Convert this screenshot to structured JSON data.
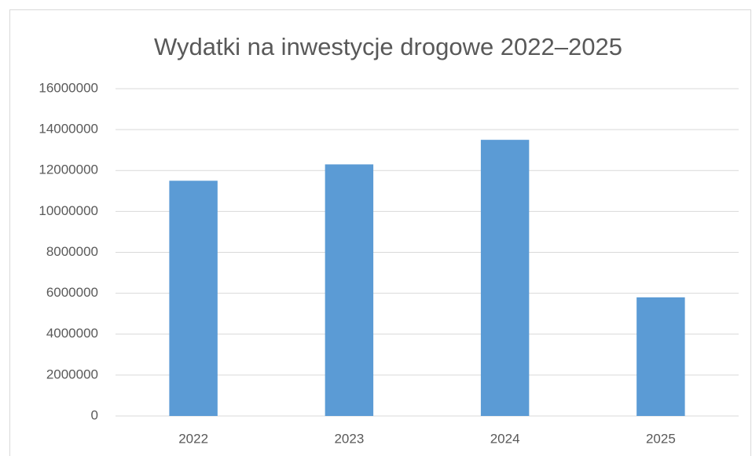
{
  "chart_data": {
    "type": "bar",
    "title": "Wydatki na inwestycje drogowe 2022–2025",
    "categories": [
      "2022",
      "2023",
      "2024",
      "2025"
    ],
    "values": [
      11500000,
      12300000,
      13500000,
      5800000
    ],
    "color": "#5b9bd5",
    "ylim": [
      0,
      16000000
    ],
    "yticks": [
      0,
      2000000,
      4000000,
      6000000,
      8000000,
      10000000,
      12000000,
      14000000,
      16000000
    ],
    "grid": true
  }
}
